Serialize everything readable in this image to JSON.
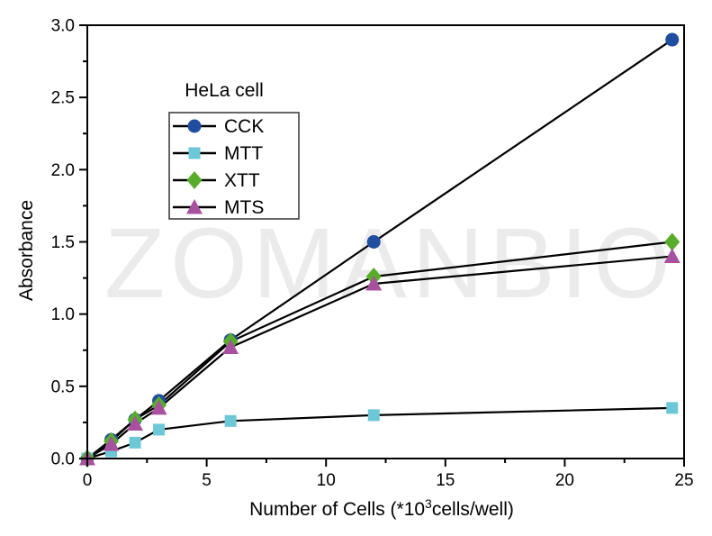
{
  "watermark": {
    "text": "ZOMANBIO",
    "color": "#ebebeb"
  },
  "axes": {
    "frame_color": "#000000",
    "tick_color": "#000000",
    "text_color": "#000000"
  },
  "chart_data": {
    "type": "line",
    "title": "HeLa cell",
    "xlabel": "Number of Cells (*10³cells/well)",
    "xlabel_parts": [
      "Number of Cells (*10",
      "3",
      "cells/well)"
    ],
    "ylabel": "Absorbance",
    "xlim": [
      0,
      25
    ],
    "ylim": [
      0,
      3
    ],
    "x_major_ticks": [
      0,
      5,
      10,
      15,
      20,
      25
    ],
    "x_tick_labels": [
      "0",
      "5",
      "10",
      "15",
      "20",
      "25"
    ],
    "x_minor_step": 2.5,
    "y_major_ticks": [
      0,
      0.5,
      1,
      1.5,
      2,
      2.5,
      3
    ],
    "y_tick_labels": [
      "0.0",
      "0.5",
      "1.0",
      "1.5",
      "2.0",
      "2.5",
      "3.0"
    ],
    "y_minor_step": 0.25,
    "grid": false,
    "legend": {
      "title": "HeLa cell",
      "position": "upper-left-inside"
    },
    "line_color": "#000000",
    "x": [
      0,
      1,
      2,
      3,
      6,
      12,
      24.5
    ],
    "series": [
      {
        "name": "CCK",
        "marker": "circle",
        "color": "#1f4da0",
        "values": [
          0,
          0.13,
          0.27,
          0.4,
          0.82,
          1.5,
          2.9
        ]
      },
      {
        "name": "MTT",
        "marker": "square",
        "color": "#6cc7d6",
        "values": [
          0,
          0.05,
          0.11,
          0.2,
          0.26,
          0.3,
          0.35
        ]
      },
      {
        "name": "XTT",
        "marker": "diamond",
        "color": "#58ac2a",
        "values": [
          0,
          0.12,
          0.27,
          0.37,
          0.81,
          1.26,
          1.5
        ]
      },
      {
        "name": "MTS",
        "marker": "triangle",
        "color": "#a8519e",
        "values": [
          0,
          0.1,
          0.24,
          0.35,
          0.77,
          1.21,
          1.4
        ]
      }
    ]
  }
}
